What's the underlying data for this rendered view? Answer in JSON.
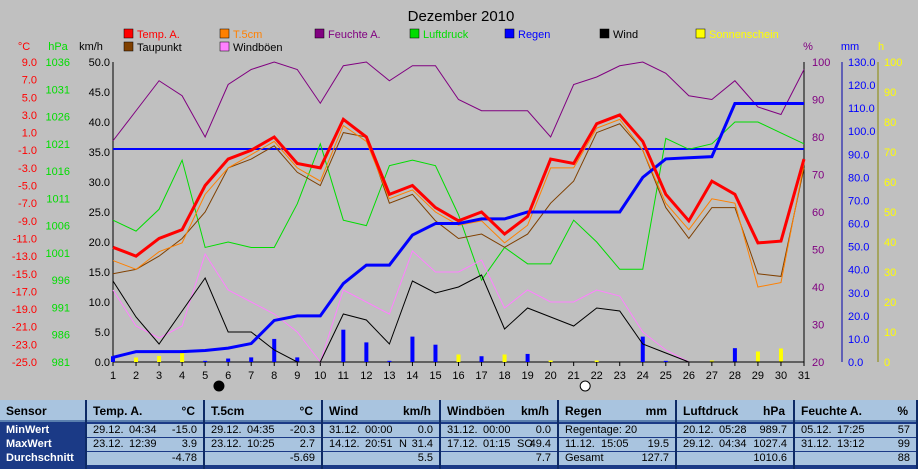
{
  "chart_data": {
    "type": "line",
    "title": "Dezember 2010",
    "x": [
      1,
      2,
      3,
      4,
      5,
      6,
      7,
      8,
      9,
      10,
      11,
      12,
      13,
      14,
      15,
      16,
      17,
      18,
      19,
      20,
      21,
      22,
      23,
      24,
      25,
      26,
      27,
      28,
      29,
      30,
      31
    ],
    "axes": {
      "temp": {
        "unit": "°C",
        "min": -25.0,
        "max": 9.0,
        "ticks": [
          "9.0",
          "7.0",
          "5.0",
          "3.0",
          "1.0",
          "-1.0",
          "-3.0",
          "-5.0",
          "-7.0",
          "-9.0",
          "-11.0",
          "-13.0",
          "-15.0",
          "-17.0",
          "-19.0",
          "-21.0",
          "-23.0",
          "-25.0"
        ]
      },
      "pressure": {
        "unit": "hPa",
        "min": 981,
        "max": 1036,
        "ticks": [
          "1036",
          "1031",
          "1026",
          "1021",
          "1016",
          "1011",
          "1006",
          "1001",
          "996",
          "991",
          "986",
          "981"
        ]
      },
      "wind": {
        "unit": "km/h",
        "min": 0,
        "max": 50,
        "ticks": [
          "50.0",
          "45.0",
          "40.0",
          "35.0",
          "30.0",
          "25.0",
          "20.0",
          "15.0",
          "10.0",
          "5.0",
          "0.0"
        ]
      },
      "humidity": {
        "unit": "%",
        "min": 20,
        "max": 100,
        "ticks": [
          "100",
          "90",
          "80",
          "70",
          "60",
          "50",
          "40",
          "30",
          "20"
        ]
      },
      "rain": {
        "unit": "mm",
        "min": 0,
        "max": 130,
        "ticks": [
          "130.0",
          "120.0",
          "110.0",
          "100.0",
          "90.0",
          "80.0",
          "70.0",
          "60.0",
          "50.0",
          "40.0",
          "30.0",
          "20.0",
          "10.0",
          "0.0"
        ]
      },
      "sun": {
        "unit": "h",
        "min": 0,
        "max": 100,
        "ticks": [
          "100",
          "90",
          "80",
          "70",
          "60",
          "50",
          "40",
          "30",
          "20",
          "10",
          "0"
        ]
      }
    },
    "series": [
      {
        "name": "Temp. A.",
        "color": "#ff0000",
        "axis": "temp",
        "values": [
          -12.0,
          -13.0,
          -11.0,
          -10.0,
          -5.0,
          -2.0,
          -1.0,
          0.5,
          -2.5,
          -3.0,
          2.5,
          0.5,
          -6.0,
          -5.0,
          -7.5,
          -9.0,
          -8.0,
          -10.5,
          -8.5,
          -2.0,
          -2.5,
          2.0,
          3.0,
          0.0,
          -6.0,
          -9.0,
          -4.5,
          -6.0,
          -11.5,
          -11.3,
          -2.0
        ]
      },
      {
        "name": "T.5cm",
        "color": "#ff8000",
        "axis": "temp",
        "values": [
          -13.5,
          -14.5,
          -12.5,
          -11.5,
          -6.0,
          -3.0,
          -1.5,
          0.0,
          -3.0,
          -4.5,
          1.8,
          0.0,
          -6.5,
          -5.5,
          -8.0,
          -9.5,
          -9.0,
          -11.5,
          -9.5,
          -3.0,
          -3.0,
          1.5,
          2.5,
          -1.0,
          -7.0,
          -10.0,
          -6.5,
          -7.0,
          -16.5,
          -16.0,
          -2.5
        ]
      },
      {
        "name": "Feuchte A.",
        "color": "#800080",
        "axis": "humidity",
        "values": [
          79,
          87,
          95,
          91,
          80,
          94,
          98,
          100,
          98,
          89,
          99,
          100,
          95,
          99,
          99,
          90,
          87,
          87,
          87,
          80,
          94,
          96,
          99,
          100,
          97,
          91,
          90,
          95,
          88,
          86,
          98
        ]
      },
      {
        "name": "Luftdruck",
        "color": "#00dd00",
        "axis": "pressure",
        "values": [
          1007,
          1005,
          1009,
          1018,
          1002,
          1003,
          1002,
          1002,
          1010,
          1021,
          1007,
          1006,
          1017,
          1018,
          1017,
          1008,
          996,
          1002,
          999,
          999,
          1007,
          1003,
          998,
          998,
          1022,
          1020,
          1021,
          1025,
          1025,
          1023,
          1021
        ]
      },
      {
        "name": "Regen",
        "color": "#0000ff",
        "axis": "rain",
        "values": [
          2.0,
          4.5,
          4.5,
          4.5,
          5.0,
          6.0,
          8.0,
          18.0,
          20.0,
          20.0,
          34.0,
          42.0,
          42.0,
          55.0,
          60.0,
          60.0,
          62.0,
          62.0,
          65.0,
          65.0,
          65.0,
          65.0,
          65.0,
          80.0,
          88.0,
          88.5,
          89.0,
          112.0,
          112.0,
          112.0,
          112.0
        ]
      },
      {
        "name": "Taupunkt",
        "color": "#804000",
        "axis": "temp",
        "values": [
          -15.0,
          -14.5,
          -13.0,
          -11.0,
          -8.0,
          -3.0,
          -2.0,
          -0.5,
          -3.5,
          -5.0,
          1.0,
          0.5,
          -7.0,
          -6.0,
          -9.0,
          -11.0,
          -10.5,
          -12.0,
          -10.5,
          -7.0,
          -4.5,
          1.0,
          2.0,
          -1.0,
          -7.5,
          -11.0,
          -7.5,
          -7.5,
          -15.0,
          -15.3,
          -3.0
        ]
      },
      {
        "name": "Wind",
        "color": "#000000",
        "axis": "wind",
        "values": [
          13.5,
          7.5,
          3.0,
          8.5,
          14.0,
          5.0,
          5.0,
          2.0,
          0.0,
          0.0,
          8.0,
          7.0,
          3.0,
          13.5,
          11.5,
          12.5,
          14.5,
          5.5,
          9.0,
          7.5,
          6.0,
          9.0,
          8.5,
          3.0,
          1.5,
          0.0,
          0.0,
          0.0,
          0.0,
          0.0,
          0.0
        ]
      },
      {
        "name": "Windböen",
        "color": "#ff80ff",
        "axis": "wind",
        "values": [
          12.0,
          6.0,
          4.0,
          6.0,
          18.0,
          12.0,
          10.0,
          8.0,
          5.0,
          0.0,
          12.0,
          10.0,
          8.0,
          18.5,
          15.0,
          15.0,
          17.0,
          9.0,
          12.0,
          10.0,
          10.0,
          12.0,
          11.0,
          5.0,
          2.0,
          0.0,
          0.0,
          0.0,
          0.0,
          0.0,
          0.0
        ]
      }
    ],
    "bars": [
      {
        "name": "Niederschlag",
        "color": "#0000ff",
        "axis": "rain",
        "values": [
          2.5,
          0,
          0,
          0,
          0.5,
          1.5,
          2.0,
          10.0,
          2.0,
          0,
          14.0,
          8.5,
          0.5,
          11.0,
          7.5,
          0,
          2.5,
          0,
          3.5,
          0,
          0,
          0,
          0,
          11.0,
          0.5,
          0,
          0,
          6.0,
          0,
          0,
          0
        ]
      },
      {
        "name": "Sonnenschein",
        "color": "#ffff00",
        "axis": "sun",
        "values": [
          0,
          1.5,
          2.0,
          3.5,
          0,
          0,
          0,
          0,
          0,
          0,
          0,
          0,
          0,
          0,
          0,
          2.5,
          0,
          2.5,
          0,
          0.5,
          0,
          0.5,
          0,
          0,
          0,
          0,
          0.5,
          0,
          3.5,
          4.5,
          0
        ]
      }
    ],
    "reference_line": {
      "axis": "wind",
      "value": 35.5,
      "color": "#0000ff"
    },
    "legend": [
      {
        "label": "Temp. A.",
        "color": "#ff0000",
        "text_color": "#ff0000"
      },
      {
        "label": "Taupunkt",
        "color": "#804000",
        "text_color": "#000000"
      },
      {
        "label": "T.5cm",
        "color": "#ff8000",
        "text_color": "#ff8000"
      },
      {
        "label": "Windböen",
        "color": "#ff80ff",
        "text_color": "#000000"
      },
      {
        "label": "Feuchte A.",
        "color": "#800080",
        "text_color": "#800080"
      },
      {
        "label": "Luftdruck",
        "color": "#00dd00",
        "text_color": "#00dd00"
      },
      {
        "label": "Regen",
        "color": "#0000ff",
        "text_color": "#0000ff"
      },
      {
        "label": "Wind",
        "color": "#000000",
        "text_color": "#000000"
      },
      {
        "label": "Sonnenschein",
        "color": "#ffff00",
        "text_color": "#ffff00"
      }
    ],
    "moon_phases": [
      {
        "day": 5.6,
        "phase": "new"
      },
      {
        "day": 21.5,
        "phase": "full"
      }
    ],
    "grid": false,
    "legend_position": "top"
  },
  "table": {
    "row_labels": {
      "header": "Sensor",
      "min": "MinWert",
      "max": "MaxWert",
      "avg": "Durchschnitt"
    },
    "columns": [
      {
        "title": "Temp. A.",
        "unit": "°C",
        "min": [
          "29.12.",
          "04:34",
          "",
          "-15.0"
        ],
        "max": [
          "23.12.",
          "12:39",
          "",
          "3.9"
        ],
        "avg": "-4.78"
      },
      {
        "title": "T.5cm",
        "unit": "°C",
        "min": [
          "29.12.",
          "04:35",
          "",
          "-20.3"
        ],
        "max": [
          "23.12.",
          "10:25",
          "",
          "2.7"
        ],
        "avg": "-5.69"
      },
      {
        "title": "Wind",
        "unit": "km/h",
        "min": [
          "31.12.",
          "00:00",
          "",
          "0.0"
        ],
        "max": [
          "14.12.",
          "20:51",
          "N",
          "31.4"
        ],
        "avg": "5.5"
      },
      {
        "title": "Windböen",
        "unit": "km/h",
        "min": [
          "31.12.",
          "00:00",
          "",
          "0.0"
        ],
        "max": [
          "17.12.",
          "01:15",
          "SO",
          "49.4"
        ],
        "avg": "7.7"
      },
      {
        "title": "Regen",
        "unit": "mm",
        "min": [
          "Regentage: 20",
          "",
          "",
          ""
        ],
        "max": [
          "11.12.",
          "15:05",
          "",
          "19.5"
        ],
        "avg_label": "Gesamt",
        "avg": "127.7"
      },
      {
        "title": "Luftdruck",
        "unit": "hPa",
        "min": [
          "20.12.",
          "05:28",
          "",
          "989.7"
        ],
        "max": [
          "29.12.",
          "04:34",
          "",
          "1027.4"
        ],
        "avg": "1010.6"
      },
      {
        "title": "Feuchte A.",
        "unit": "%",
        "min": [
          "05.12.",
          "17:25",
          "",
          "57"
        ],
        "max": [
          "31.12.",
          "13:12",
          "",
          "99"
        ],
        "avg": "88"
      }
    ]
  }
}
